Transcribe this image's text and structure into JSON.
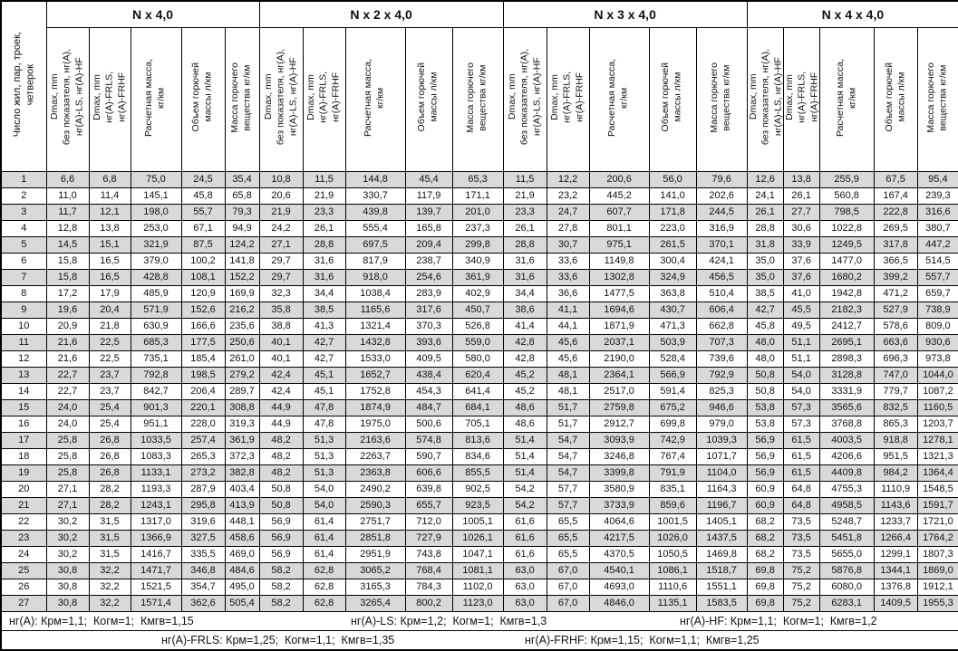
{
  "table": {
    "corner_header": "Число жил, пар, троек,\nчетверок",
    "groups": [
      "N x 4,0",
      "N x 2 x 4,0",
      "N x 3 x 4,0",
      "N x 4 x 4,0"
    ],
    "column_headers": [
      "Dmax, mm\nбез показателя, нг(А),\nнг(А)-LS, нг(А)-HF",
      "Dmax, mm\nнг(А)-FRLS,\nнг(А)-FRHF",
      "Расчетная масса,\nкг/км",
      "Объем горючей\nмассы л/км",
      "Масса горючего\nвещества кг/км"
    ],
    "stripe_color": "#d9d9d9",
    "rows": [
      {
        "n": "1",
        "cells": [
          "6,6",
          "6,8",
          "75,0",
          "24,5",
          "35,4",
          "10,8",
          "11,5",
          "144,8",
          "45,4",
          "65,3",
          "11,5",
          "12,2",
          "200,6",
          "56,0",
          "79,6",
          "12,6",
          "13,8",
          "255,9",
          "67,5",
          "95,4"
        ]
      },
      {
        "n": "2",
        "cells": [
          "11,0",
          "11,4",
          "145,1",
          "45,8",
          "65,8",
          "20,6",
          "21,9",
          "330,7",
          "117,9",
          "171,1",
          "21,9",
          "23,2",
          "445,2",
          "141,0",
          "202,6",
          "24,1",
          "26,1",
          "560,8",
          "167,4",
          "239,3"
        ]
      },
      {
        "n": "3",
        "cells": [
          "11,7",
          "12,1",
          "198,0",
          "55,7",
          "79,3",
          "21,9",
          "23,3",
          "439,8",
          "139,7",
          "201,0",
          "23,3",
          "24,7",
          "607,7",
          "171,8",
          "244,5",
          "26,1",
          "27,7",
          "798,5",
          "222,8",
          "316,6"
        ]
      },
      {
        "n": "4",
        "cells": [
          "12,8",
          "13,8",
          "253,0",
          "67,1",
          "94,9",
          "24,2",
          "26,1",
          "555,4",
          "165,8",
          "237,3",
          "26,1",
          "27,8",
          "801,1",
          "223,0",
          "316,9",
          "28,8",
          "30,6",
          "1022,8",
          "269,5",
          "380,7"
        ]
      },
      {
        "n": "5",
        "cells": [
          "14,5",
          "15,1",
          "321,9",
          "87,5",
          "124,2",
          "27,1",
          "28,8",
          "697,5",
          "209,4",
          "299,8",
          "28,8",
          "30,7",
          "975,1",
          "261,5",
          "370,1",
          "31,8",
          "33,9",
          "1249,5",
          "317,8",
          "447,2"
        ]
      },
      {
        "n": "6",
        "cells": [
          "15,8",
          "16,5",
          "379,0",
          "100,2",
          "141,8",
          "29,7",
          "31,6",
          "817,9",
          "238,7",
          "340,9",
          "31,6",
          "33,6",
          "1149,8",
          "300,4",
          "424,1",
          "35,0",
          "37,6",
          "1477,0",
          "366,5",
          "514,5"
        ]
      },
      {
        "n": "7",
        "cells": [
          "15,8",
          "16,5",
          "428,8",
          "108,1",
          "152,2",
          "29,7",
          "31,6",
          "918,0",
          "254,6",
          "361,9",
          "31,6",
          "33,6",
          "1302,8",
          "324,9",
          "456,5",
          "35,0",
          "37,6",
          "1680,2",
          "399,2",
          "557,7"
        ]
      },
      {
        "n": "8",
        "cells": [
          "17,2",
          "17,9",
          "485,9",
          "120,9",
          "169,9",
          "32,3",
          "34,4",
          "1038,4",
          "283,9",
          "402,9",
          "34,4",
          "36,6",
          "1477,5",
          "363,8",
          "510,4",
          "38,5",
          "41,0",
          "1942,8",
          "471,2",
          "659,7"
        ]
      },
      {
        "n": "9",
        "cells": [
          "19,6",
          "20,4",
          "571,9",
          "152,6",
          "216,2",
          "35,8",
          "38,5",
          "1165,6",
          "317,6",
          "450,7",
          "38,6",
          "41,1",
          "1694,6",
          "430,7",
          "606,4",
          "42,7",
          "45,5",
          "2182,3",
          "527,9",
          "738,9"
        ]
      },
      {
        "n": "10",
        "cells": [
          "20,9",
          "21,8",
          "630,9",
          "166,6",
          "235,6",
          "38,8",
          "41,3",
          "1321,4",
          "370,3",
          "526,8",
          "41,4",
          "44,1",
          "1871,9",
          "471,3",
          "662,8",
          "45,8",
          "49,5",
          "2412,7",
          "578,6",
          "809,0"
        ]
      },
      {
        "n": "11",
        "cells": [
          "21,6",
          "22,5",
          "685,3",
          "177,5",
          "250,6",
          "40,1",
          "42,7",
          "1432,8",
          "393,6",
          "559,0",
          "42,8",
          "45,6",
          "2037,1",
          "503,9",
          "707,3",
          "48,0",
          "51,1",
          "2695,1",
          "663,6",
          "930,6"
        ]
      },
      {
        "n": "12",
        "cells": [
          "21,6",
          "22,5",
          "735,1",
          "185,4",
          "261,0",
          "40,1",
          "42,7",
          "1533,0",
          "409,5",
          "580,0",
          "42,8",
          "45,6",
          "2190,0",
          "528,4",
          "739,6",
          "48,0",
          "51,1",
          "2898,3",
          "696,3",
          "973,8"
        ]
      },
      {
        "n": "13",
        "cells": [
          "22,7",
          "23,7",
          "792,8",
          "198,5",
          "279,2",
          "42,4",
          "45,1",
          "1652,7",
          "438,4",
          "620,4",
          "45,2",
          "48,1",
          "2364,1",
          "566,9",
          "792,9",
          "50,8",
          "54,0",
          "3128,8",
          "747,0",
          "1044,0"
        ]
      },
      {
        "n": "14",
        "cells": [
          "22,7",
          "23,7",
          "842,7",
          "206,4",
          "289,7",
          "42,4",
          "45,1",
          "1752,8",
          "454,3",
          "641,4",
          "45,2",
          "48,1",
          "2517,0",
          "591,4",
          "825,3",
          "50,8",
          "54,0",
          "3331,9",
          "779,7",
          "1087,2"
        ]
      },
      {
        "n": "15",
        "cells": [
          "24,0",
          "25,4",
          "901,3",
          "220,1",
          "308,8",
          "44,9",
          "47,8",
          "1874,9",
          "484,7",
          "684,1",
          "48,6",
          "51,7",
          "2759,8",
          "675,2",
          "946,6",
          "53,8",
          "57,3",
          "3565,6",
          "832,5",
          "1160,5"
        ]
      },
      {
        "n": "16",
        "cells": [
          "24,0",
          "25,4",
          "951,1",
          "228,0",
          "319,3",
          "44,9",
          "47,8",
          "1975,0",
          "500,6",
          "705,1",
          "48,6",
          "51,7",
          "2912,7",
          "699,8",
          "979,0",
          "53,8",
          "57,3",
          "3768,8",
          "865,3",
          "1203,7"
        ]
      },
      {
        "n": "17",
        "cells": [
          "25,8",
          "26,8",
          "1033,5",
          "257,4",
          "361,9",
          "48,2",
          "51,3",
          "2163,6",
          "574,8",
          "813,6",
          "51,4",
          "54,7",
          "3093,9",
          "742,9",
          "1039,3",
          "56,9",
          "61,5",
          "4003,5",
          "918,8",
          "1278,1"
        ]
      },
      {
        "n": "18",
        "cells": [
          "25,8",
          "26,8",
          "1083,3",
          "265,3",
          "372,3",
          "48,2",
          "51,3",
          "2263,7",
          "590,7",
          "834,6",
          "51,4",
          "54,7",
          "3246,8",
          "767,4",
          "1071,7",
          "56,9",
          "61,5",
          "4206,6",
          "951,5",
          "1321,3"
        ]
      },
      {
        "n": "19",
        "cells": [
          "25,8",
          "26,8",
          "1133,1",
          "273,2",
          "382,8",
          "48,2",
          "51,3",
          "2363,8",
          "606,6",
          "855,5",
          "51,4",
          "54,7",
          "3399,8",
          "791,9",
          "1104,0",
          "56,9",
          "61,5",
          "4409,8",
          "984,2",
          "1364,4"
        ]
      },
      {
        "n": "20",
        "cells": [
          "27,1",
          "28,2",
          "1193,3",
          "287,9",
          "403,4",
          "50,8",
          "54,0",
          "2490,2",
          "639,8",
          "902,5",
          "54,2",
          "57,7",
          "3580,9",
          "835,1",
          "1164,3",
          "60,9",
          "64,8",
          "4755,3",
          "1110,9",
          "1548,5"
        ]
      },
      {
        "n": "21",
        "cells": [
          "27,1",
          "28,2",
          "1243,1",
          "295,8",
          "413,9",
          "50,8",
          "54,0",
          "2590,3",
          "655,7",
          "923,5",
          "54,2",
          "57,7",
          "3733,9",
          "859,6",
          "1196,7",
          "60,9",
          "64,8",
          "4958,5",
          "1143,6",
          "1591,7"
        ]
      },
      {
        "n": "22",
        "cells": [
          "30,2",
          "31,5",
          "1317,0",
          "319,6",
          "448,1",
          "56,9",
          "61,4",
          "2751,7",
          "712,0",
          "1005,1",
          "61,6",
          "65,5",
          "4064,6",
          "1001,5",
          "1405,1",
          "68,2",
          "73,5",
          "5248,7",
          "1233,7",
          "1721,0"
        ]
      },
      {
        "n": "23",
        "cells": [
          "30,2",
          "31,5",
          "1366,9",
          "327,5",
          "458,6",
          "56,9",
          "61,4",
          "2851,8",
          "727,9",
          "1026,1",
          "61,6",
          "65,5",
          "4217,5",
          "1026,0",
          "1437,5",
          "68,2",
          "73,5",
          "5451,8",
          "1266,4",
          "1764,2"
        ]
      },
      {
        "n": "24",
        "cells": [
          "30,2",
          "31,5",
          "1416,7",
          "335,5",
          "469,0",
          "56,9",
          "61,4",
          "2951,9",
          "743,8",
          "1047,1",
          "61,6",
          "65,5",
          "4370,5",
          "1050,5",
          "1469,8",
          "68,2",
          "73,5",
          "5655,0",
          "1299,1",
          "1807,3"
        ]
      },
      {
        "n": "25",
        "cells": [
          "30,8",
          "32,2",
          "1471,7",
          "346,8",
          "484,6",
          "58,2",
          "62,8",
          "3065,2",
          "768,4",
          "1081,1",
          "63,0",
          "67,0",
          "4540,1",
          "1086,1",
          "1518,7",
          "69,8",
          "75,2",
          "5876,8",
          "1344,1",
          "1869,0"
        ]
      },
      {
        "n": "26",
        "cells": [
          "30,8",
          "32,2",
          "1521,5",
          "354,7",
          "495,0",
          "58,2",
          "62,8",
          "3165,3",
          "784,3",
          "1102,0",
          "63,0",
          "67,0",
          "4693,0",
          "1110,6",
          "1551,1",
          "69,8",
          "75,2",
          "6080,0",
          "1376,8",
          "1912,1"
        ]
      },
      {
        "n": "27",
        "cells": [
          "30,8",
          "32,2",
          "1571,4",
          "362,6",
          "505,4",
          "58,2",
          "62,8",
          "3265,4",
          "800,2",
          "1123,0",
          "63,0",
          "67,0",
          "4846,0",
          "1135,1",
          "1583,5",
          "69,8",
          "75,2",
          "6283,1",
          "1409,5",
          "1955,3"
        ]
      }
    ],
    "footnotes": [
      [
        "нг(А): Крм=1,1;  Когм=1;  Кмгв=1,15",
        "нг(А)-LS: Крм=1,2;  Когм=1;  Кмгв=1,3",
        "нг(А)-HF: Крм=1,1;  Когм=1;  Кмгв=1,2"
      ],
      [
        "нг(А)-FRLS: Крм=1,25;  Когм=1,1;  Кмгв=1,35",
        "нг(А)-FRHF: Крм=1,15;  Когм=1,1;  Кмгв=1,25"
      ]
    ]
  }
}
